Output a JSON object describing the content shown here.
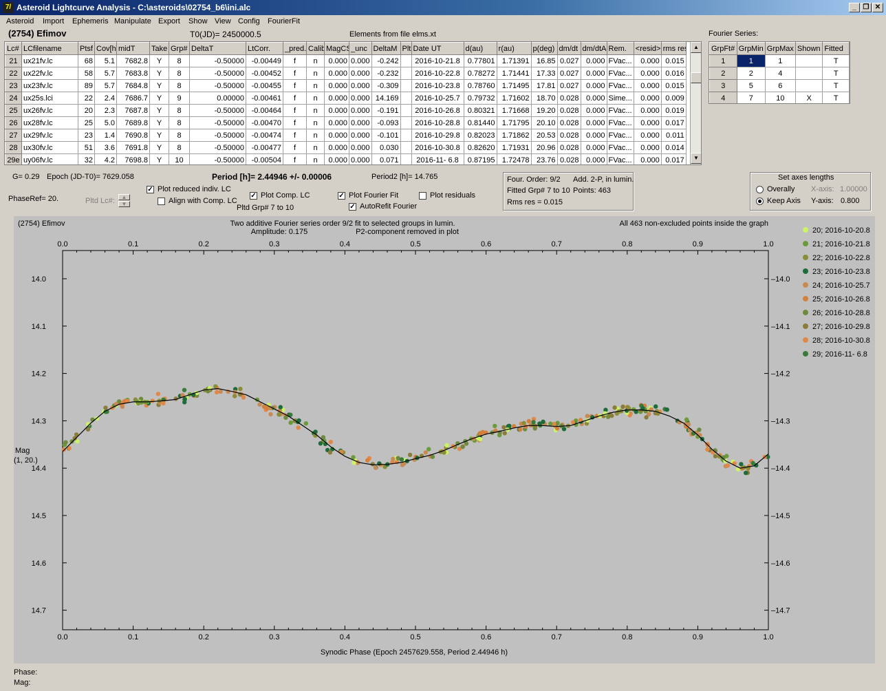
{
  "window": {
    "title": "Asteroid Lightcurve Analysis - C:\\asteroids\\02754_b6\\ini.alc",
    "app_icon": "7/",
    "buttons": [
      "_",
      "❐",
      "✕"
    ]
  },
  "menu": [
    "Asteroid",
    "Import",
    "Ephemeris",
    "Manipulate",
    "Export",
    "Show",
    "View",
    "Config",
    "FourierFit"
  ],
  "header": {
    "asteroid_name": "(2754) Efimov",
    "t0": "T0(JD)= 2450000.5",
    "elements": "Elements from file elms.xt",
    "fourier_series_label": "Fourier Series:"
  },
  "lc_table": {
    "columns": [
      "Lc#",
      "LCfilename",
      "Ptsf",
      "Cov[h]",
      "midT",
      "Take",
      "Grp#",
      "DeltaT",
      "LtCorr.",
      "_pred.",
      "Calib.",
      "MagCS",
      "_unc",
      "DeltaM",
      "Plt",
      "Date UT",
      "d(au)",
      "r(au)",
      "p(deg)",
      "dm/dt",
      "dm/dtA",
      "Rem.",
      "<resid>",
      "rms res"
    ],
    "rows": [
      [
        "21",
        "ux21fv.lc",
        "68",
        "5.1",
        "7682.8",
        "Y",
        "8",
        "-0.50000",
        "-0.00449",
        "f",
        "n",
        "0.000",
        "0.000",
        "-0.242",
        "",
        "2016-10-21.8",
        "0.77801",
        "1.71391",
        "16.85",
        "0.027",
        "0.000",
        "FVac...",
        "0.000",
        "0.015"
      ],
      [
        "22",
        "ux22fv.lc",
        "58",
        "5.7",
        "7683.8",
        "Y",
        "8",
        "-0.50000",
        "-0.00452",
        "f",
        "n",
        "0.000",
        "0.000",
        "-0.232",
        "",
        "2016-10-22.8",
        "0.78272",
        "1.71441",
        "17.33",
        "0.027",
        "0.000",
        "FVac...",
        "0.000",
        "0.016"
      ],
      [
        "23",
        "ux23fv.lc",
        "89",
        "5.7",
        "7684.8",
        "Y",
        "8",
        "-0.50000",
        "-0.00455",
        "f",
        "n",
        "0.000",
        "0.000",
        "-0.309",
        "",
        "2016-10-23.8",
        "0.78760",
        "1.71495",
        "17.81",
        "0.027",
        "0.000",
        "FVac...",
        "0.000",
        "0.015"
      ],
      [
        "24",
        "ux25s.lci",
        "22",
        "2.4",
        "7686.7",
        "Y",
        "9",
        "0.00000",
        "-0.00461",
        "f",
        "n",
        "0.000",
        "0.000",
        "14.169",
        "",
        "2016-10-25.7",
        "0.79732",
        "1.71602",
        "18.70",
        "0.028",
        "0.000",
        "Sime...",
        "0.000",
        "0.009"
      ],
      [
        "25",
        "ux26fv.lc",
        "20",
        "2.3",
        "7687.8",
        "Y",
        "8",
        "-0.50000",
        "-0.00464",
        "f",
        "n",
        "0.000",
        "0.000",
        "-0.191",
        "",
        "2016-10-26.8",
        "0.80321",
        "1.71668",
        "19.20",
        "0.028",
        "0.000",
        "FVac...",
        "0.000",
        "0.019"
      ],
      [
        "26",
        "ux28fv.lc",
        "25",
        "5.0",
        "7689.8",
        "Y",
        "8",
        "-0.50000",
        "-0.00470",
        "f",
        "n",
        "0.000",
        "0.000",
        "-0.093",
        "",
        "2016-10-28.8",
        "0.81440",
        "1.71795",
        "20.10",
        "0.028",
        "0.000",
        "FVac...",
        "0.000",
        "0.017"
      ],
      [
        "27",
        "ux29fv.lc",
        "23",
        "1.4",
        "7690.8",
        "Y",
        "8",
        "-0.50000",
        "-0.00474",
        "f",
        "n",
        "0.000",
        "0.000",
        "-0.101",
        "",
        "2016-10-29.8",
        "0.82023",
        "1.71862",
        "20.53",
        "0.028",
        "0.000",
        "FVac...",
        "0.000",
        "0.011"
      ],
      [
        "28",
        "ux30fv.lc",
        "51",
        "3.6",
        "7691.8",
        "Y",
        "8",
        "-0.50000",
        "-0.00477",
        "f",
        "n",
        "0.000",
        "0.000",
        "0.030",
        "",
        "2016-10-30.8",
        "0.82620",
        "1.71931",
        "20.96",
        "0.028",
        "0.000",
        "FVac...",
        "0.000",
        "0.014"
      ],
      [
        "29e",
        "uy06fv.lc",
        "32",
        "4.2",
        "7698.8",
        "Y",
        "10",
        "-0.50000",
        "-0.00504",
        "f",
        "n",
        "0.000",
        "0.000",
        "0.071",
        "",
        "2016-11- 6.8",
        "0.87195",
        "1.72478",
        "23.76",
        "0.028",
        "0.000",
        "FVac...",
        "0.000",
        "0.017"
      ]
    ]
  },
  "fourier_table": {
    "columns": [
      "GrpFt#",
      "GrpMin",
      "GrpMax",
      "Shown",
      "Fitted"
    ],
    "rows": [
      [
        "1",
        "1",
        "1",
        "",
        "T"
      ],
      [
        "2",
        "2",
        "4",
        "",
        "T"
      ],
      [
        "3",
        "5",
        "6",
        "",
        "T"
      ],
      [
        "4",
        "7",
        "10",
        "X",
        "T"
      ]
    ]
  },
  "info": {
    "g": "G= 0.29",
    "epoch": "Epoch (JD-T0)= 7629.058",
    "period": "Period [h]= 2.44946 +/- 0.00006",
    "period2": "Period2 [h]= 14.765",
    "phaseref": "PhaseRef= 20.",
    "pltd_lc": "Pltd Lc#:",
    "pltd_grp": "Pltd Grp#  7   to   10"
  },
  "options": {
    "plot_reduced": {
      "label": "Plot reduced indiv. LC",
      "checked": true
    },
    "align_comp": {
      "label": "Align with Comp. LC",
      "checked": false
    },
    "plot_comp": {
      "label": "Plot Comp. LC",
      "checked": true
    },
    "plot_fourier": {
      "label": "Plot Fourier Fit",
      "checked": true
    },
    "autorefit": {
      "label": "AutoRefit Fourier",
      "checked": true
    },
    "plot_residuals": {
      "label": "Plot residuals",
      "checked": false
    }
  },
  "fit_info": {
    "order": "Four. Order:  9/2",
    "add": "Add. 2-P, in lumin.",
    "fitted": "Fitted Grp# 7 to 10",
    "points": "Points: 463",
    "rms": "Rms res     = 0.015"
  },
  "axes_box": {
    "title": "Set axes lengths",
    "overally": "Overally",
    "keep_axis": "Keep Axis",
    "x_label": "X-axis:",
    "x_value": "1.00000",
    "y_label": "Y-axis:",
    "y_value": "0.800",
    "selected": "keep_axis"
  },
  "chart_data": {
    "type": "scatter",
    "top_left_label": "(2754) Efimov",
    "title": "Two additive Fourier series order 9/2 fit to selected groups in lumin.",
    "amplitude": "Amplitude: 0.175",
    "p2_note": "P2-component removed in plot",
    "right_note": "All 463 non-excluded points inside the graph",
    "xlabel": "Synodic Phase (Epoch 2457629.558, Period 2.44946 h)",
    "ylabel": "Mag",
    "ylabel2": "(1, 20.)",
    "xlim": [
      0.0,
      1.0
    ],
    "ylim": [
      14.7,
      14.0
    ],
    "y_inverted": true,
    "x_ticks": [
      "0.0",
      "0.1",
      "0.2",
      "0.3",
      "0.4",
      "0.5",
      "0.6",
      "0.7",
      "0.8",
      "0.9",
      "1.0"
    ],
    "y_ticks": [
      "14.0",
      "14.1",
      "14.2",
      "14.3",
      "14.4",
      "14.5",
      "14.6",
      "14.7"
    ],
    "fit_curve": {
      "x": [
        0.0,
        0.02,
        0.04,
        0.06,
        0.08,
        0.1,
        0.12,
        0.14,
        0.16,
        0.18,
        0.2,
        0.22,
        0.24,
        0.26,
        0.28,
        0.3,
        0.32,
        0.34,
        0.36,
        0.38,
        0.4,
        0.42,
        0.44,
        0.46,
        0.48,
        0.5,
        0.52,
        0.54,
        0.56,
        0.58,
        0.6,
        0.62,
        0.64,
        0.66,
        0.68,
        0.7,
        0.72,
        0.74,
        0.76,
        0.78,
        0.8,
        0.82,
        0.84,
        0.86,
        0.88,
        0.9,
        0.92,
        0.94,
        0.96,
        0.98,
        1.0
      ],
      "y": [
        14.365,
        14.335,
        14.305,
        14.28,
        14.265,
        14.26,
        14.26,
        14.258,
        14.255,
        14.245,
        14.235,
        14.232,
        14.238,
        14.245,
        14.26,
        14.275,
        14.29,
        14.31,
        14.33,
        14.355,
        14.375,
        14.388,
        14.393,
        14.392,
        14.388,
        14.38,
        14.373,
        14.363,
        14.35,
        14.338,
        14.328,
        14.322,
        14.315,
        14.31,
        14.31,
        14.312,
        14.31,
        14.3,
        14.29,
        14.282,
        14.277,
        14.277,
        14.28,
        14.29,
        14.305,
        14.33,
        14.36,
        14.385,
        14.4,
        14.395,
        14.37
      ]
    },
    "series": [
      {
        "name": "20; 2016-10-20.8",
        "color": "#ccf266"
      },
      {
        "name": "21; 2016-10-21.8",
        "color": "#6a9a3a"
      },
      {
        "name": "22; 2016-10-22.8",
        "color": "#8a8c38"
      },
      {
        "name": "23; 2016-10-23.8",
        "color": "#1d6b3b"
      },
      {
        "name": "24; 2016-10-25.7",
        "color": "#c88a54"
      },
      {
        "name": "25; 2016-10-26.8",
        "color": "#d47f3a"
      },
      {
        "name": "26; 2016-10-28.8",
        "color": "#6e8a3e"
      },
      {
        "name": "27; 2016-10-29.8",
        "color": "#8a7c3a"
      },
      {
        "name": "28; 2016-10-30.8",
        "color": "#e08848"
      },
      {
        "name": "29; 2016-11- 6.8",
        "color": "#3a7a3a"
      }
    ],
    "points_shown": 463
  },
  "status": {
    "phase": "Phase:",
    "mag": "Mag:"
  }
}
